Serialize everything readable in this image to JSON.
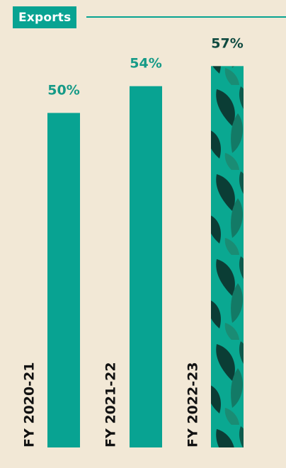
{
  "colors": {
    "background": "#f2e8d6",
    "bar": "#08a392",
    "highlight_bar_base": "#0aa891",
    "leaf_dark": "#0b3d35",
    "leaf_mid": "#137a66",
    "label_value": "#169a87",
    "label_value_highlight": "#0f4a40",
    "label_category": "#111111"
  },
  "chart_data": {
    "type": "bar",
    "title": "Exports",
    "categories": [
      "FY 2020-21",
      "FY 2021-22",
      "FY 2022-23"
    ],
    "values": [
      50,
      54,
      57
    ],
    "value_labels": [
      "50%",
      "54%",
      "57%"
    ],
    "unit": "%",
    "highlight_index": 2,
    "ylim": [
      0,
      60
    ],
    "grid": false,
    "legend": "none",
    "category_label_orientation": "vertical"
  }
}
